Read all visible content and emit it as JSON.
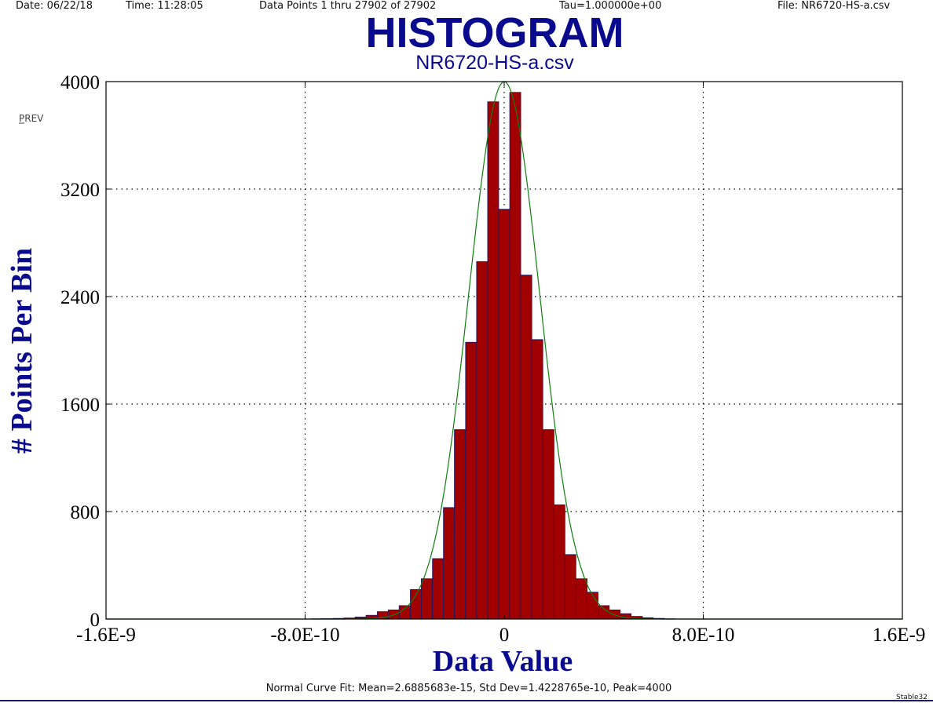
{
  "header": {
    "date": "Date: 06/22/18",
    "time": "Time: 11:28:05",
    "points": "Data Points 1 thru 27902 of 27902",
    "tau": "Tau=1.000000e+00",
    "file": "File: NR6720-HS-a.csv"
  },
  "prev_button": "PREV",
  "footer": {
    "fit": "Normal Curve Fit: Mean=2.6885683e-15, Std Dev=1.4228765e-10, Peak=4000",
    "brand": "Stable32"
  },
  "colors": {
    "bar_fill": "#a00000",
    "bar_stroke": "#1a1a66",
    "curve": "#108010",
    "title": "#0a0a8f",
    "grid": "#000000"
  },
  "chart_data": {
    "type": "bar",
    "title": "HISTOGRAM",
    "subtitle": "NR6720-HS-a.csv",
    "xlabel": "Data Value",
    "ylabel": "# Points Per Bin",
    "xlim": [
      -1.6e-09,
      1.6e-09
    ],
    "ylim": [
      0,
      4000
    ],
    "xticks": [
      -1.6e-09,
      -8e-10,
      0,
      8e-10,
      1.6e-09
    ],
    "xtick_labels": [
      "-1.6E-9",
      "-8.0E-10",
      "0",
      "8.0E-10",
      "1.6E-9"
    ],
    "yticks": [
      0,
      800,
      1600,
      2400,
      3200,
      4000
    ],
    "ytick_labels": [
      "0",
      "800",
      "1600",
      "2400",
      "3200",
      "4000"
    ],
    "grid": "dotted",
    "bin_width": 4.44e-11,
    "bins": [
      {
        "x": -7.55e-10,
        "count": 2
      },
      {
        "x": -7.11e-10,
        "count": 3
      },
      {
        "x": -6.66e-10,
        "count": 5
      },
      {
        "x": -6.22e-10,
        "count": 8
      },
      {
        "x": -5.77e-10,
        "count": 15
      },
      {
        "x": -5.33e-10,
        "count": 28
      },
      {
        "x": -4.88e-10,
        "count": 55
      },
      {
        "x": -4.44e-10,
        "count": 68
      },
      {
        "x": -4e-10,
        "count": 100
      },
      {
        "x": -3.55e-10,
        "count": 220
      },
      {
        "x": -3.11e-10,
        "count": 300
      },
      {
        "x": -2.66e-10,
        "count": 450
      },
      {
        "x": -2.22e-10,
        "count": 830
      },
      {
        "x": -1.78e-10,
        "count": 1410
      },
      {
        "x": -1.33e-10,
        "count": 2060
      },
      {
        "x": -8.88e-11,
        "count": 2660
      },
      {
        "x": -4.44e-11,
        "count": 3850
      },
      {
        "x": 0,
        "count": 3050
      },
      {
        "x": 4.44e-11,
        "count": 3920
      },
      {
        "x": 8.88e-11,
        "count": 2560
      },
      {
        "x": 1.33e-10,
        "count": 2080
      },
      {
        "x": 1.78e-10,
        "count": 1410
      },
      {
        "x": 2.22e-10,
        "count": 850
      },
      {
        "x": 2.66e-10,
        "count": 480
      },
      {
        "x": 3.11e-10,
        "count": 300
      },
      {
        "x": 3.55e-10,
        "count": 200
      },
      {
        "x": 4e-10,
        "count": 100
      },
      {
        "x": 4.44e-10,
        "count": 68
      },
      {
        "x": 4.88e-10,
        "count": 40
      },
      {
        "x": 5.33e-10,
        "count": 20
      },
      {
        "x": 5.77e-10,
        "count": 10
      },
      {
        "x": 6.22e-10,
        "count": 5
      },
      {
        "x": 6.66e-10,
        "count": 2
      }
    ],
    "normal_fit": {
      "mean": 2.6885683e-15,
      "std_dev": 1.4228765e-10,
      "peak": 4000
    }
  }
}
